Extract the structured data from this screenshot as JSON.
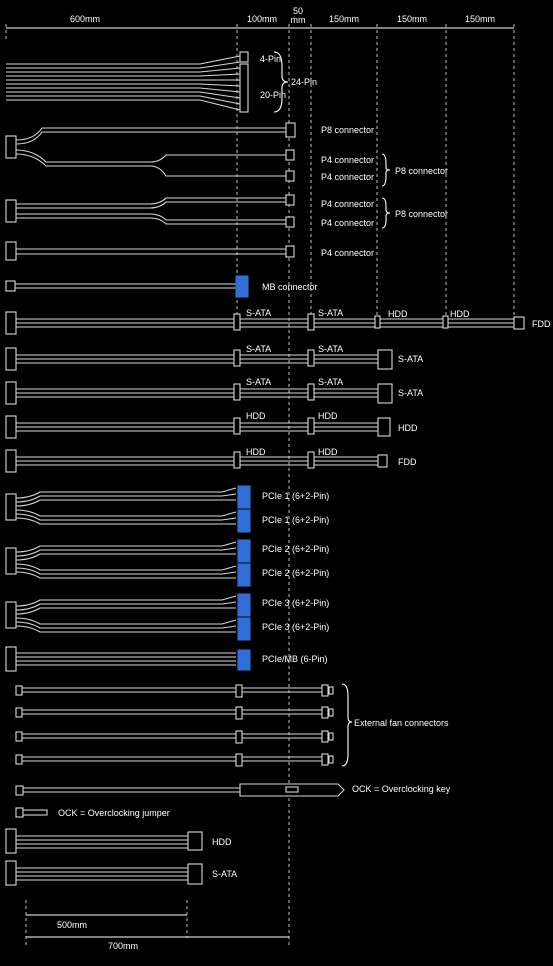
{
  "top_dimensions": [
    "600mm",
    "100mm",
    "50\nmm",
    "150mm",
    "150mm",
    "150mm"
  ],
  "bottom_dimensions": [
    "500mm",
    "700mm"
  ],
  "main_connector": {
    "pin4": "4-Pin",
    "pin20": "20-Pin",
    "pin24": "24-Pin"
  },
  "cpu": {
    "p8": "P8 connector",
    "p4": "P4 connector",
    "p8_pair": "P8 connector"
  },
  "mb_connector": "MB connector",
  "sata": "S-ATA",
  "hdd": "HDD",
  "fdd": "FDD",
  "pcie1": "PCIe 1 (6+2-Pin)",
  "pcie2": "PCIe 2 (6+2-Pin)",
  "pcie3": "PCIe 3 (6+2-Pin)",
  "pcie_mb": "PCIe/MB (6-Pin)",
  "fans": "External fan connectors",
  "ock_key": "OCK = Overclocking key",
  "ock_jumper": "OCK = Overclocking jumper",
  "colors": {
    "background": "#000000",
    "cable": "#d8d8d8",
    "pcie": "#2f6fd6"
  }
}
